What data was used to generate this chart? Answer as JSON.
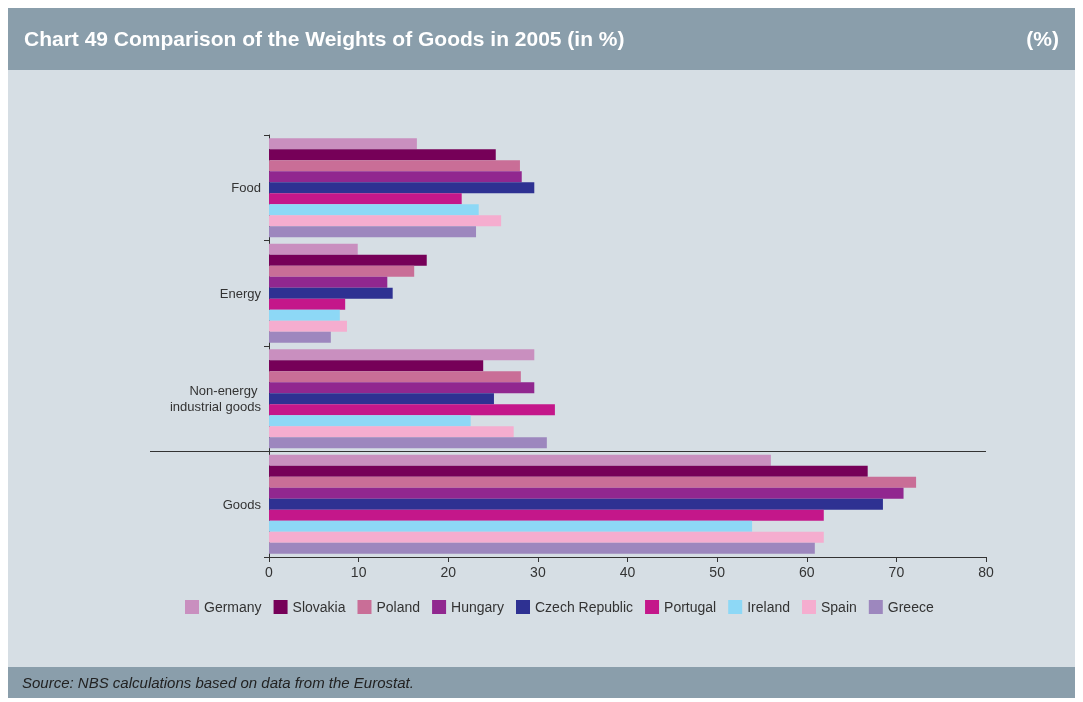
{
  "chart_data": {
    "type": "bar",
    "orientation": "horizontal",
    "title": "Chart 49  Comparison of the Weights of Goods in 2005 (in %)",
    "subtitle": "(%)",
    "annotations": [
      "Source: NBS calculations based on data from the Eurostat."
    ],
    "categories": [
      "Food",
      "Energy",
      "Non-energy industrial goods",
      "Goods"
    ],
    "series": [
      {
        "name": "Germany",
        "color": "#c98fbf",
        "values": [
          16.5,
          9.9,
          29.6,
          56.0
        ]
      },
      {
        "name": "Slovakia",
        "color": "#760058",
        "values": [
          25.3,
          17.6,
          23.9,
          66.8
        ]
      },
      {
        "name": "Poland",
        "color": "#c96e97",
        "values": [
          28.0,
          16.2,
          28.1,
          72.2
        ]
      },
      {
        "name": "Hungary",
        "color": "#91278f",
        "values": [
          28.2,
          13.2,
          29.6,
          70.8
        ]
      },
      {
        "name": "Czech Republic",
        "color": "#2e3192",
        "values": [
          29.6,
          13.8,
          25.1,
          68.5
        ]
      },
      {
        "name": "Portugal",
        "color": "#c4178a",
        "values": [
          21.5,
          8.5,
          31.9,
          61.9
        ]
      },
      {
        "name": "Ireland",
        "color": "#8dd8f6",
        "values": [
          23.4,
          7.9,
          22.5,
          53.9
        ]
      },
      {
        "name": "Spain",
        "color": "#f5adcf",
        "values": [
          25.9,
          8.7,
          27.3,
          61.9
        ]
      },
      {
        "name": "Greece",
        "color": "#9d87be",
        "values": [
          23.1,
          6.9,
          31.0,
          60.9
        ]
      }
    ],
    "xlim": [
      0,
      80
    ],
    "xticks": [
      0,
      10,
      20,
      30,
      40,
      50,
      60,
      70,
      80
    ],
    "grid": false,
    "legend": "bottom"
  }
}
